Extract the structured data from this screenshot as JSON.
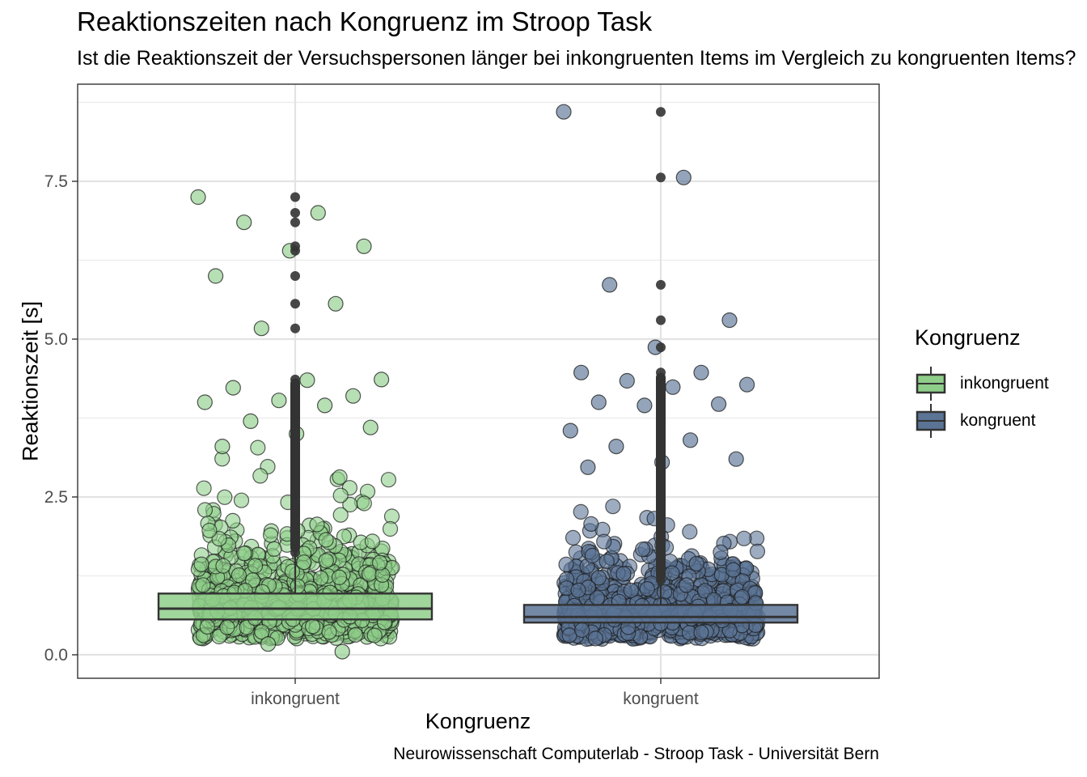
{
  "chart_data": {
    "type": "box",
    "title": "Reaktionszeiten nach Kongruenz im Stroop Task",
    "subtitle": "Ist die Reaktionszeit der Versuchspersonen länger bei inkongruenten Items im Vergleich zu kongruenten Items?",
    "xlabel": "Kongruenz",
    "ylabel": "Reaktionszeit [s]",
    "caption": "Neurowissenschaft Computerlab - Stroop Task - Universität Bern",
    "categories": [
      "inkongruent",
      "kongruent"
    ],
    "ylim": [
      -0.4,
      9.0
    ],
    "yticks": [
      0.0,
      2.5,
      5.0,
      7.5
    ],
    "ytick_labels": [
      "0.0",
      "2.5",
      "5.0",
      "7.5"
    ],
    "grid": true,
    "legend": {
      "title": "Kongruenz",
      "placement": "right",
      "entries": [
        "inkongruent",
        "kongruent"
      ]
    },
    "colors": {
      "inkongruent": "#8fce8a",
      "kongruent": "#5b7496"
    },
    "boxes": [
      {
        "category": "inkongruent",
        "q1": 0.56,
        "median": 0.73,
        "q3": 0.97,
        "outliers": [
          1.62,
          1.7,
          1.8,
          1.9,
          2.0,
          2.1,
          2.2,
          2.3,
          2.4,
          2.5,
          2.6,
          2.7,
          2.8,
          2.9,
          3.0,
          3.1,
          3.2,
          3.3,
          3.4,
          3.5,
          3.6,
          3.7,
          3.8,
          3.9,
          4.0,
          4.1,
          4.2,
          4.3,
          4.36,
          5.17,
          5.56,
          6.0,
          6.4,
          6.47,
          6.85,
          7.0,
          7.25
        ]
      },
      {
        "category": "kongruent",
        "q1": 0.51,
        "median": 0.6,
        "q3": 0.79,
        "outliers": [
          1.18,
          1.3,
          1.4,
          1.5,
          1.6,
          1.7,
          1.8,
          1.9,
          2.0,
          2.1,
          2.2,
          2.3,
          2.4,
          2.5,
          2.6,
          2.7,
          2.8,
          2.9,
          3.0,
          3.1,
          3.2,
          3.3,
          3.54,
          3.97,
          4.02,
          4.34,
          4.47,
          4.87,
          5.3,
          5.86,
          7.56,
          8.6
        ]
      }
    ],
    "highlighted_jitter_points": [
      {
        "category": "inkongruent",
        "values": [
          7.25,
          7.0,
          6.85,
          6.47,
          6.4,
          6.0,
          5.56,
          5.17,
          4.36,
          4.35,
          4.23,
          4.1,
          4.03,
          4.0,
          3.95,
          3.7,
          3.6,
          3.5,
          3.3,
          0.05,
          0.17
        ]
      },
      {
        "category": "kongruent",
        "values": [
          8.6,
          7.56,
          5.86,
          5.3,
          4.87,
          4.47,
          4.47,
          4.34,
          4.28,
          4.24,
          4.0,
          3.97,
          3.95,
          3.55,
          3.4,
          3.3,
          3.1,
          3.05,
          2.97
        ]
      }
    ]
  }
}
